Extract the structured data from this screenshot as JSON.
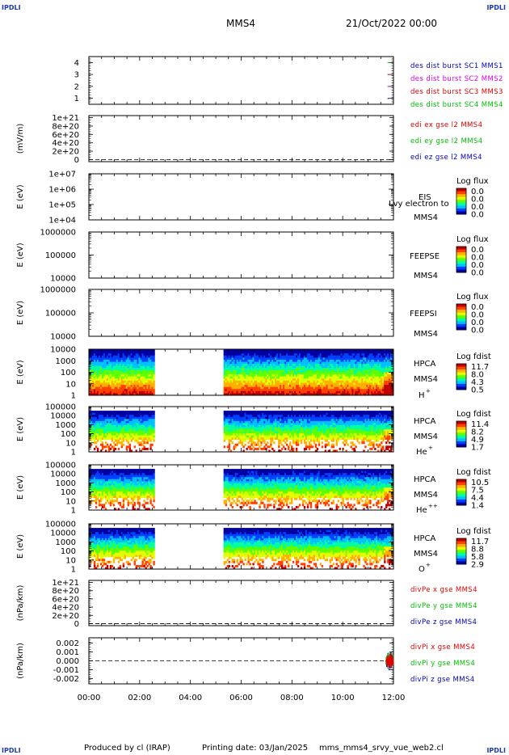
{
  "header": {
    "corner_label": "IPDLI",
    "spacecraft": "MMS4",
    "datetime": "21/Oct/2022 00:00"
  },
  "footer": {
    "produced_by": "Produced by cl (IRAP)",
    "printing_date": "Printing date: 03/Jan/2025",
    "file": "mms_mms4_srvy_vue_web2.cl"
  },
  "colors": {
    "red": "#e00000",
    "green": "#00c000",
    "blue": "#0000c0",
    "magenta": "#e000e0",
    "spectrum": [
      "#0000a0",
      "#0040ff",
      "#00c0ff",
      "#00ffa0",
      "#60ff00",
      "#e0ff00",
      "#ffb000",
      "#ff4000",
      "#c00000"
    ]
  },
  "chart_data": {
    "type": "multi-panel time series",
    "xaxis": {
      "ticks": [
        "00:00",
        "02:00",
        "04:00",
        "06:00",
        "08:00",
        "10:00",
        "12:00"
      ],
      "range_hours": [
        0,
        12
      ]
    },
    "panels": [
      {
        "id": "burst",
        "kind": "markers",
        "ytick_labels": [
          "4",
          "3",
          "2",
          "1"
        ],
        "yticks": [
          4,
          3,
          2,
          1
        ],
        "ylim": [
          0.5,
          4.5
        ],
        "ylabel": "",
        "labels": [
          {
            "text": "des dist burst SC1 MMS1",
            "color": "#0000c0"
          },
          {
            "text": "des dist burst SC2 MMS2",
            "color": "#e000e0"
          },
          {
            "text": "des dist burst SC3 MMS3",
            "color": "#e00000"
          },
          {
            "text": "des dist burst SC4 MMS4",
            "color": "#00c000"
          }
        ],
        "markers": [
          {
            "x": 11.8,
            "y": 4,
            "color": "#00c000"
          },
          {
            "x": 11.8,
            "y": 3,
            "color": "#e00000"
          },
          {
            "x": 11.8,
            "y": 2,
            "color": "#e000e0"
          },
          {
            "x": 11.8,
            "y": 1,
            "color": "#0000c0"
          }
        ]
      },
      {
        "id": "edi",
        "kind": "line",
        "ylabel": "(mV/m)",
        "ytick_labels": [
          "1e+21",
          "8e+20",
          "6e+20",
          "4e+20",
          "2e+20",
          "0"
        ],
        "yticks": [
          1e+21,
          8e+20,
          6e+20,
          4e+20,
          2e+20,
          0
        ],
        "ylim": [
          -5e+19,
          1.05e+21
        ],
        "zero_line": true,
        "labels": [
          {
            "text": "edi ex gse l2 MMS4",
            "color": "#e00000"
          },
          {
            "text": "edi ey gse l2 MMS4",
            "color": "#00c000"
          },
          {
            "text": "edi ez gse l2 MMS4",
            "color": "#0000c0"
          }
        ]
      },
      {
        "id": "eis",
        "kind": "spectrogram",
        "ylabel": "E (eV)",
        "ytick_labels": [
          "1e+07",
          "1e+06",
          "1e+05",
          "1e+04"
        ],
        "log_range": [
          4,
          7
        ],
        "instrument": "EIS",
        "sc": "MMS4",
        "note": "Lvy electron to",
        "cbar_title": "Log flux",
        "cbar_values": [
          "0.0",
          "0.0",
          "0.0",
          "0.0"
        ],
        "empty": true
      },
      {
        "id": "feepse",
        "kind": "spectrogram",
        "ylabel": "E (eV)",
        "ytick_labels": [
          "1000000",
          "100000",
          "10000"
        ],
        "log_range": [
          4,
          6
        ],
        "instrument": "FEEPSE",
        "sc": "MMS4",
        "cbar_title": "Log flux",
        "cbar_values": [
          "0.0",
          "0.0",
          "0.0",
          "0.0"
        ],
        "empty": true
      },
      {
        "id": "feepsi",
        "kind": "spectrogram",
        "ylabel": "E (eV)",
        "ytick_labels": [
          "1000000",
          "100000",
          "10000"
        ],
        "log_range": [
          4,
          6
        ],
        "instrument": "FEEPSI",
        "sc": "MMS4",
        "cbar_title": "Log flux",
        "cbar_values": [
          "0.0",
          "0.0",
          "0.0",
          "0.0"
        ],
        "empty": true
      },
      {
        "id": "hpca_h",
        "kind": "spectrogram",
        "ylabel": "E (eV)",
        "ytick_labels": [
          "10000",
          "1000",
          "100",
          "10",
          "1"
        ],
        "log_range": [
          0,
          4.5
        ],
        "instrument": "HPCA",
        "sc": "MMS4",
        "species": "H",
        "species_sup": "+",
        "cbar_title": "Log fdist",
        "cbar_values": [
          "11.7",
          "8.0",
          "4.3",
          "0.5"
        ],
        "gap_hours": [
          2.6,
          5.3
        ],
        "upper_cutoff_log": 4.4,
        "fill_low": true,
        "spec_seed": 11
      },
      {
        "id": "hpca_he",
        "kind": "spectrogram",
        "ylabel": "E (eV)",
        "ytick_labels": [
          "100000",
          "10000",
          "1000",
          "100",
          "10",
          "1"
        ],
        "log_range": [
          0,
          5
        ],
        "instrument": "HPCA",
        "sc": "MMS4",
        "species": "He",
        "species_sup": "+",
        "cbar_title": "Log fdist",
        "cbar_values": [
          "11.4",
          "8.2",
          "4.9",
          "1.7"
        ],
        "gap_hours": [
          2.6,
          5.3
        ],
        "upper_cutoff_log": 4.5,
        "fill_low": false,
        "spec_seed": 23
      },
      {
        "id": "hpca_hepp",
        "kind": "spectrogram",
        "ylabel": "E (eV)",
        "ytick_labels": [
          "100000",
          "10000",
          "1000",
          "100",
          "10",
          "1"
        ],
        "log_range": [
          0,
          5
        ],
        "instrument": "HPCA",
        "sc": "MMS4",
        "species": "He",
        "species_sup": "++",
        "cbar_title": "Log fdist",
        "cbar_values": [
          "10.5",
          "7.5",
          "4.4",
          "1.4"
        ],
        "gap_hours": [
          2.6,
          5.3
        ],
        "upper_cutoff_log": 4.5,
        "fill_low": false,
        "spec_seed": 37
      },
      {
        "id": "hpca_o",
        "kind": "spectrogram",
        "ylabel": "E (eV)",
        "ytick_labels": [
          "100000",
          "10000",
          "1000",
          "100",
          "10",
          "1"
        ],
        "log_range": [
          0,
          5
        ],
        "instrument": "HPCA",
        "sc": "MMS4",
        "species": "O",
        "species_sup": "+",
        "cbar_title": "Log fdist",
        "cbar_values": [
          "11.7",
          "8.8",
          "5.8",
          "2.9"
        ],
        "gap_hours": [
          2.6,
          5.3
        ],
        "upper_cutoff_log": 4.5,
        "fill_low": false,
        "spec_seed": 51
      },
      {
        "id": "divpe",
        "kind": "line",
        "ylabel": "(nPa/km)",
        "ytick_labels": [
          "1e+21",
          "8e+20",
          "6e+20",
          "4e+20",
          "2e+20",
          "0"
        ],
        "yticks": [
          1e+21,
          8e+20,
          6e+20,
          4e+20,
          2e+20,
          0
        ],
        "ylim": [
          -5e+19,
          1.05e+21
        ],
        "zero_line": true,
        "labels": [
          {
            "text": "divPe x gse MMS4",
            "color": "#e00000"
          },
          {
            "text": "divPe y gse MMS4",
            "color": "#00c000"
          },
          {
            "text": "divPe z gse MMS4",
            "color": "#0000c0"
          }
        ]
      },
      {
        "id": "divpi",
        "kind": "line",
        "ylabel": "(nPa/km)",
        "ytick_labels": [
          "0.002",
          "0.001",
          "0.000",
          "-0.001",
          "-0.002"
        ],
        "yticks": [
          0.002,
          0.001,
          0.0,
          -0.001,
          -0.002
        ],
        "ylim": [
          -0.0026,
          0.0026
        ],
        "zero_line": true,
        "labels": [
          {
            "text": "divPi x gse MMS4",
            "color": "#e00000"
          },
          {
            "text": "divPi y gse MMS4",
            "color": "#00c000"
          },
          {
            "text": "divPi z gse MMS4",
            "color": "#0000c0"
          }
        ],
        "burst_start_hours": 11.7
      }
    ]
  }
}
